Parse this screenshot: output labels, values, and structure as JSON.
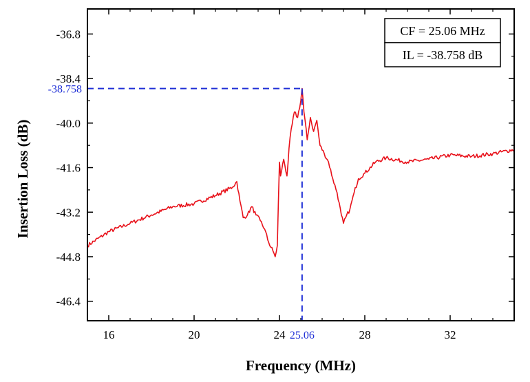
{
  "chart_data": {
    "type": "line",
    "title": "",
    "xlabel": "Frequency (MHz)",
    "ylabel": "Insertion Loss (dB)",
    "xlim": [
      15,
      35
    ],
    "ylim": [
      -47.1,
      -35.9
    ],
    "x_ticks": [
      16,
      20,
      24,
      28,
      32
    ],
    "y_ticks": [
      -36.8,
      -38.4,
      -40.0,
      -41.6,
      -43.2,
      -44.8,
      -46.4
    ],
    "x_tick_labels": [
      "16",
      "20",
      "24",
      "28",
      "32"
    ],
    "y_tick_labels": [
      "-36.8",
      "-38.4",
      "-40.0",
      "-41.6",
      "-43.2",
      "-44.8",
      "-46.4"
    ],
    "grid": false,
    "colors": {
      "series": "#e8111a",
      "reference": "#1f2fd6",
      "axis": "#000000"
    },
    "series": [
      {
        "name": "Insertion Loss",
        "x": [
          15.0,
          16.0,
          17.0,
          18.0,
          19.0,
          20.0,
          21.0,
          21.8,
          22.0,
          22.15,
          22.3,
          22.5,
          22.7,
          22.9,
          23.1,
          23.3,
          23.5,
          23.7,
          23.8,
          23.9,
          24.0,
          24.05,
          24.2,
          24.35,
          24.5,
          24.7,
          24.85,
          25.0,
          25.06,
          25.15,
          25.3,
          25.45,
          25.6,
          25.75,
          25.9,
          26.1,
          26.3,
          26.5,
          26.7,
          26.9,
          27.0,
          27.1,
          27.3,
          27.5,
          27.7,
          28.0,
          28.5,
          29.0,
          30.0,
          31.0,
          32.0,
          33.0,
          34.0,
          35.0
        ],
        "y": [
          -44.4,
          -43.9,
          -43.6,
          -43.3,
          -43.0,
          -42.9,
          -42.6,
          -42.3,
          -42.1,
          -42.8,
          -43.4,
          -43.3,
          -43.0,
          -43.3,
          -43.5,
          -43.8,
          -44.3,
          -44.6,
          -44.8,
          -44.4,
          -41.4,
          -41.9,
          -41.3,
          -41.9,
          -40.5,
          -39.6,
          -39.8,
          -39.2,
          -38.758,
          -39.6,
          -40.6,
          -39.8,
          -40.3,
          -39.9,
          -40.8,
          -41.1,
          -41.4,
          -42.0,
          -42.5,
          -43.3,
          -43.6,
          -43.4,
          -43.1,
          -42.5,
          -42.0,
          -41.8,
          -41.4,
          -41.25,
          -41.4,
          -41.3,
          -41.15,
          -41.2,
          -41.1,
          -40.95
        ]
      }
    ],
    "reference": {
      "x": 25.06,
      "y": -38.758,
      "x_label": "25.06",
      "y_label": "-38.758"
    },
    "annotations": [
      "CF = 25.06 MHz",
      "IL = -38.758 dB"
    ]
  }
}
